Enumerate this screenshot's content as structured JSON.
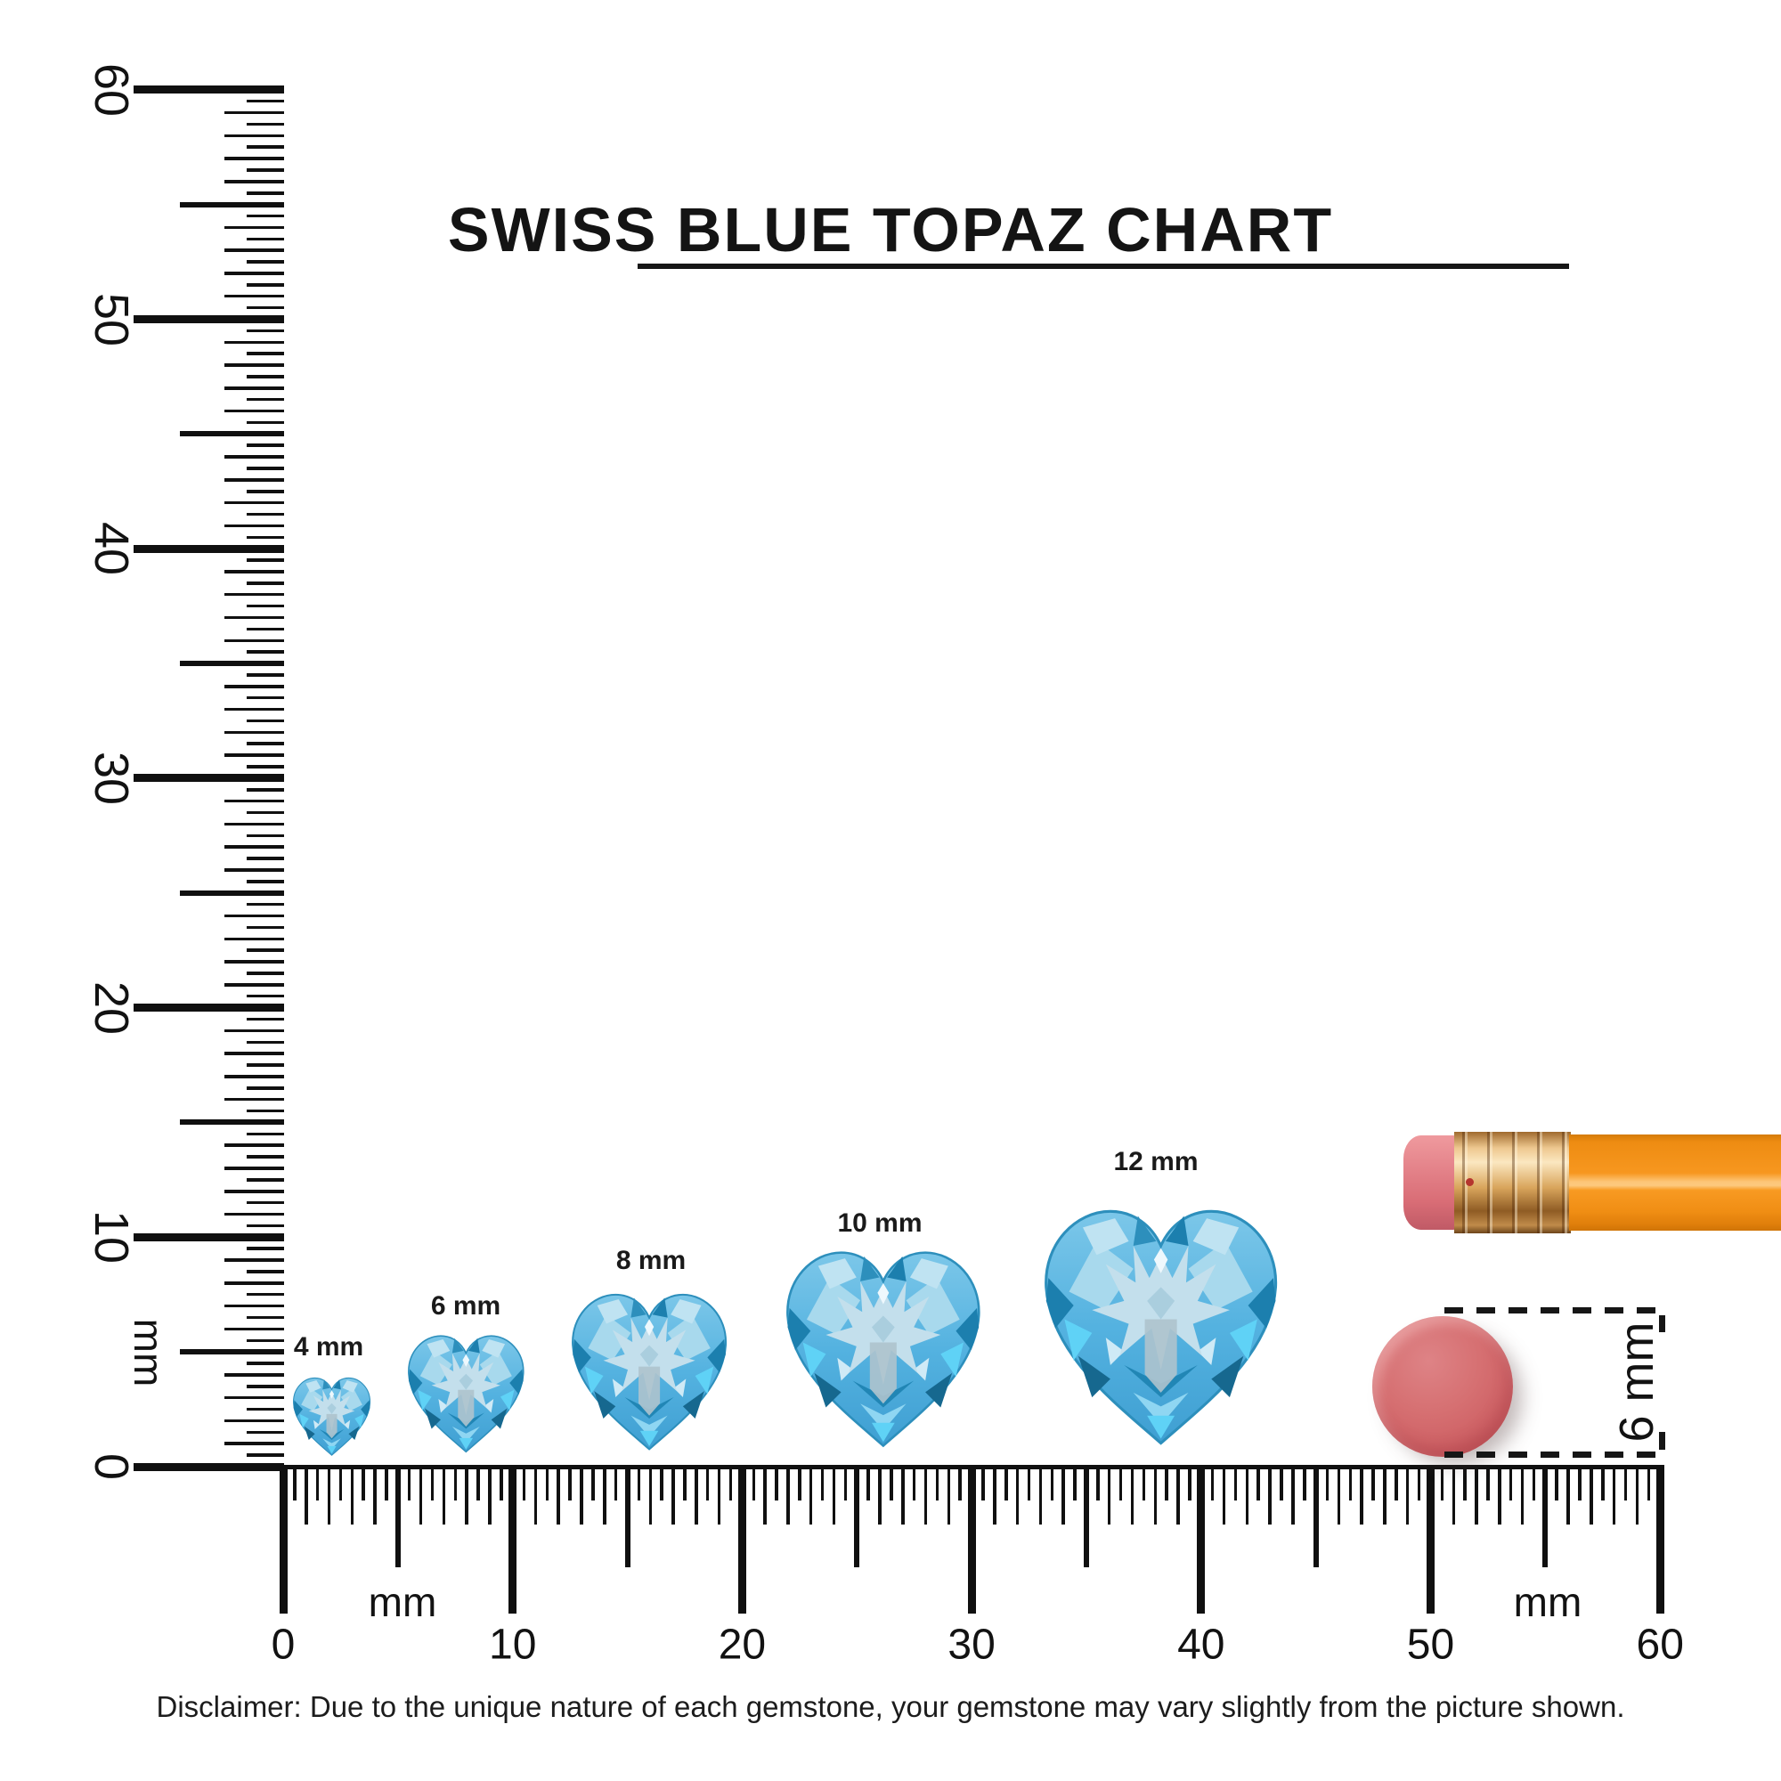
{
  "title": {
    "text": "SWISS BLUE TOPAZ CHART"
  },
  "rulers": {
    "vertical": {
      "unit": "mm",
      "range_mm": [
        0,
        60
      ],
      "tick_numbers": [
        "0",
        "10",
        "20",
        "30",
        "40",
        "50",
        "60"
      ]
    },
    "horizontal": {
      "unit_label_left": "mm",
      "unit_label_right": "mm",
      "range_mm": [
        0,
        60
      ],
      "tick_numbers": [
        "0",
        "10",
        "20",
        "30",
        "40",
        "50",
        "60"
      ]
    }
  },
  "gems": [
    {
      "label": "4 mm",
      "size_mm": 4
    },
    {
      "label": "6 mm",
      "size_mm": 6
    },
    {
      "label": "8 mm",
      "size_mm": 8
    },
    {
      "label": "10 mm",
      "size_mm": 10
    },
    {
      "label": "12 mm",
      "size_mm": 12
    }
  ],
  "scale_references": {
    "pencil": {
      "description": "pencil tip with pink eraser, brass ferrule and orange body"
    },
    "disc": {
      "label": "6 mm",
      "diameter_mm": 6
    }
  },
  "disclaimer": "Disclaimer: Due to the unique nature of each gemstone, your gemstone may vary slightly from the picture shown.",
  "colors": {
    "gem_blue": "#54b2e0",
    "gem_light": "#bfe3f2",
    "gem_dark": "#1c7fae",
    "pencil_body": "#f79420",
    "pencil_ferrule": "#d9a55c",
    "pencil_eraser": "#e07a80",
    "disc_red": "#d66a6c",
    "ink": "#111111",
    "background": "#ffffff"
  }
}
